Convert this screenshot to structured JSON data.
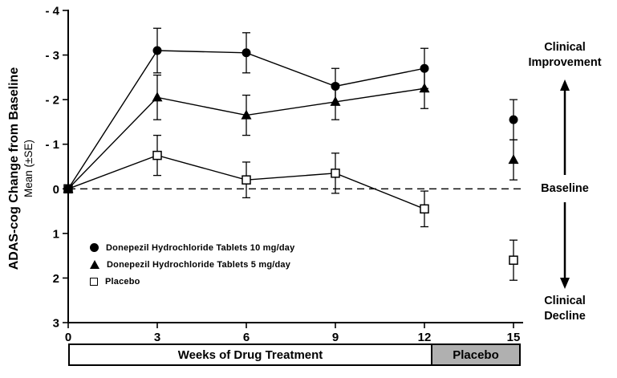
{
  "chart_data": {
    "type": "line",
    "title": "",
    "xlabel": "Weeks of Drug Treatment",
    "ylabel": "ADAS-cog Change from Baseline",
    "ylabel_sub": "Mean (±SE)",
    "xlim": [
      0,
      15
    ],
    "ylim": [
      -4,
      3
    ],
    "y_axis_inverted": true,
    "grid": false,
    "legend_position": "inside-lower-left",
    "x_ticks": [
      0,
      3,
      6,
      9,
      12,
      15
    ],
    "x_tick_labels": [
      "0",
      "3",
      "6",
      "9",
      "12",
      "15"
    ],
    "y_ticks": [
      -4,
      -3,
      -2,
      -1,
      0,
      1,
      2,
      3
    ],
    "y_tick_labels": [
      "- 4",
      "- 3",
      "- 2",
      "- 1",
      "0",
      "1",
      "2",
      "3"
    ],
    "baseline_value": 0,
    "line_color": "#000000",
    "series": [
      {
        "name": "Donepezil Hydrochloride Tablets 10 mg/day",
        "marker": "filled-circle",
        "color": "#000000",
        "x": [
          0,
          3,
          6,
          9,
          12
        ],
        "y": [
          0,
          -3.1,
          -3.05,
          -2.3,
          -2.7
        ],
        "se": [
          0,
          0.5,
          0.45,
          0.4,
          0.45
        ],
        "detached_point": {
          "x": 15,
          "y": -1.55,
          "se": 0.45
        }
      },
      {
        "name": "Donepezil Hydrochloride Tablets 5 mg/day",
        "marker": "filled-triangle",
        "color": "#000000",
        "x": [
          0,
          3,
          6,
          9,
          12
        ],
        "y": [
          0,
          -2.05,
          -1.65,
          -1.95,
          -2.25
        ],
        "se": [
          0,
          0.5,
          0.45,
          0.4,
          0.45
        ],
        "detached_point": {
          "x": 15,
          "y": -0.65,
          "se": 0.45
        }
      },
      {
        "name": "Placebo",
        "marker": "open-square",
        "color": "#000000",
        "x": [
          0,
          3,
          6,
          9,
          12
        ],
        "y": [
          0,
          -0.75,
          -0.2,
          -0.35,
          0.45
        ],
        "se": [
          0,
          0.45,
          0.4,
          0.45,
          0.4
        ],
        "detached_point": {
          "x": 15,
          "y": 1.6,
          "se": 0.45
        }
      }
    ],
    "annotations": {
      "improvement": "Clinical Improvement",
      "baseline": "Baseline",
      "decline": "Clinical Decline"
    },
    "footer": {
      "treatment_label": "Weeks of Drug Treatment",
      "placebo_label": "Placebo",
      "placebo_box_color": "#b0b0b0"
    }
  }
}
